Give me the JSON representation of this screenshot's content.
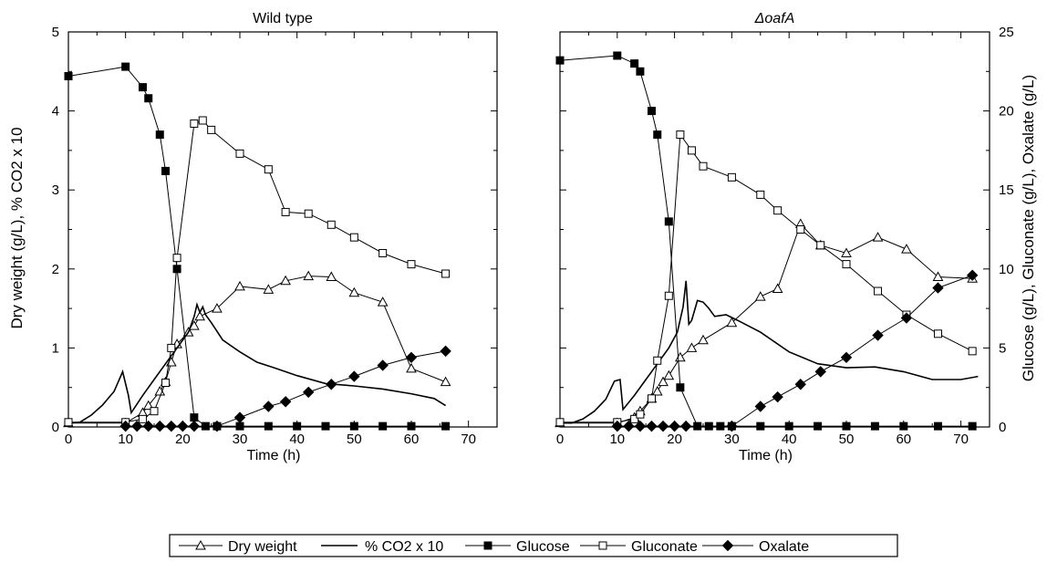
{
  "figure": {
    "left_axis_label": "Dry weight (g/L), % CO2 x 10",
    "right_axis_label": "Glucose  (g/L), Gluconate  (g/L), Oxalate  (g/L)"
  },
  "legend": {
    "items": [
      {
        "label": "Dry weight",
        "marker": "open-triangle",
        "line": true
      },
      {
        "label": "% CO2 x 10",
        "marker": "none",
        "line": true
      },
      {
        "label": "Glucose",
        "marker": "filled-square",
        "line": true
      },
      {
        "label": "Gluconate",
        "marker": "open-square",
        "line": true
      },
      {
        "label": "Oxalate",
        "marker": "filled-diamond",
        "line": true
      }
    ]
  },
  "chart_data": [
    {
      "type": "line",
      "title": "Wild type",
      "title_italic": false,
      "xlabel": "Time (h)",
      "xlim": [
        0,
        75
      ],
      "xticks": [
        0,
        10,
        20,
        30,
        40,
        50,
        60,
        70
      ],
      "ylim_left": [
        0,
        5
      ],
      "yticks_left": [
        0,
        1,
        2,
        3,
        4,
        5
      ],
      "ylim_right": [
        0,
        25
      ],
      "yticks_right": [
        0,
        5,
        10,
        15,
        20,
        25
      ],
      "show_left_ticklabels": true,
      "show_right_ticklabels": false,
      "grid": false,
      "series": [
        {
          "name": "Dry weight",
          "axis": "left",
          "marker": "open-triangle",
          "x": [
            0,
            10,
            13,
            14,
            16,
            17,
            18,
            19,
            21,
            22,
            23,
            26,
            30,
            35,
            38,
            42,
            46,
            50,
            55,
            60,
            66
          ],
          "y": [
            0.05,
            0.05,
            0.18,
            0.27,
            0.45,
            0.57,
            0.82,
            1.05,
            1.2,
            1.28,
            1.4,
            1.5,
            1.78,
            1.74,
            1.85,
            1.91,
            1.9,
            1.7,
            1.58,
            0.74,
            0.57
          ]
        },
        {
          "name": "% CO2 x 10",
          "axis": "left",
          "marker": "none",
          "x": [
            0,
            2,
            4,
            6,
            8,
            9.5,
            10.5,
            11,
            13,
            15,
            17,
            19,
            21,
            22,
            22.5,
            23,
            23.5,
            24,
            25,
            27,
            30,
            33,
            36,
            40,
            45,
            50,
            55,
            60,
            64,
            66
          ],
          "y": [
            0.05,
            0.06,
            0.15,
            0.28,
            0.45,
            0.7,
            0.4,
            0.18,
            0.4,
            0.6,
            0.8,
            1.0,
            1.2,
            1.4,
            1.55,
            1.45,
            1.52,
            1.42,
            1.32,
            1.1,
            0.95,
            0.82,
            0.75,
            0.65,
            0.55,
            0.52,
            0.48,
            0.42,
            0.36,
            0.27
          ]
        },
        {
          "name": "Glucose",
          "axis": "right",
          "marker": "filled-square",
          "x": [
            0,
            10,
            13,
            14,
            16,
            17,
            19,
            22,
            24,
            26,
            30,
            35,
            40,
            45,
            50,
            55,
            60,
            66
          ],
          "y": [
            22.2,
            22.8,
            21.5,
            20.8,
            18.5,
            16.2,
            10.0,
            0.6,
            0.05,
            0.05,
            0.05,
            0.05,
            0.05,
            0.05,
            0.05,
            0.05,
            0.05,
            0.05
          ]
        },
        {
          "name": "Gluconate",
          "axis": "right",
          "marker": "open-square",
          "x": [
            0,
            10,
            13,
            15,
            17,
            18,
            19,
            22,
            23.5,
            25,
            30,
            35,
            38,
            42,
            46,
            50,
            55,
            60,
            66
          ],
          "y": [
            0.3,
            0.3,
            0.5,
            1.0,
            2.8,
            5.0,
            10.7,
            19.2,
            19.4,
            18.8,
            17.3,
            16.3,
            13.6,
            13.5,
            12.8,
            12.0,
            11.0,
            10.3,
            9.7
          ]
        },
        {
          "name": "Oxalate",
          "axis": "right",
          "marker": "filled-diamond",
          "x": [
            10,
            12,
            14,
            16,
            18,
            20,
            22,
            26,
            30,
            35,
            38,
            42,
            46,
            50,
            55,
            60,
            66
          ],
          "y": [
            0.05,
            0.05,
            0.05,
            0.05,
            0.05,
            0.05,
            0.05,
            0.05,
            0.6,
            1.3,
            1.6,
            2.2,
            2.7,
            3.2,
            3.9,
            4.4,
            4.8
          ]
        }
      ]
    },
    {
      "type": "line",
      "title": "ΔoafA",
      "title_italic": true,
      "xlabel": "Time (h)",
      "xlim": [
        0,
        75
      ],
      "xticks": [
        0,
        10,
        20,
        30,
        40,
        50,
        60,
        70
      ],
      "ylim_left": [
        0,
        5
      ],
      "yticks_left": [
        0,
        1,
        2,
        3,
        4,
        5
      ],
      "ylim_right": [
        0,
        25
      ],
      "yticks_right": [
        0,
        5,
        10,
        15,
        20,
        25
      ],
      "show_left_ticklabels": false,
      "show_right_ticklabels": true,
      "grid": false,
      "series": [
        {
          "name": "Dry weight",
          "axis": "left",
          "marker": "open-triangle",
          "x": [
            0,
            10,
            13,
            14,
            16,
            17,
            18,
            19,
            21,
            23,
            25,
            30,
            35,
            38,
            42,
            45.5,
            50,
            55.5,
            60.5,
            66,
            72
          ],
          "y": [
            0.05,
            0.05,
            0.12,
            0.2,
            0.36,
            0.45,
            0.57,
            0.65,
            0.88,
            1.0,
            1.1,
            1.32,
            1.65,
            1.75,
            2.57,
            2.3,
            2.2,
            2.4,
            2.25,
            1.9,
            1.88
          ]
        },
        {
          "name": "% CO2 x 10",
          "axis": "left",
          "marker": "none",
          "x": [
            0,
            2,
            4,
            6,
            8,
            9.5,
            10.5,
            11,
            13,
            15,
            17,
            19,
            20.5,
            21.5,
            22,
            22.5,
            23,
            24,
            25,
            26,
            27,
            29,
            31,
            35,
            40,
            45,
            50,
            55,
            60,
            65,
            70,
            73
          ],
          "y": [
            0.05,
            0.05,
            0.1,
            0.2,
            0.35,
            0.58,
            0.6,
            0.22,
            0.4,
            0.6,
            0.8,
            1.0,
            1.2,
            1.52,
            1.85,
            1.3,
            1.35,
            1.6,
            1.58,
            1.5,
            1.4,
            1.42,
            1.35,
            1.2,
            0.95,
            0.8,
            0.75,
            0.76,
            0.7,
            0.6,
            0.6,
            0.64
          ]
        },
        {
          "name": "Glucose",
          "axis": "right",
          "marker": "filled-square",
          "x": [
            0,
            10,
            13,
            14,
            16,
            17,
            19,
            21,
            24,
            26,
            28,
            30,
            35,
            40,
            45,
            50,
            55,
            60,
            66,
            72
          ],
          "y": [
            23.2,
            23.5,
            23.0,
            22.5,
            20.0,
            18.5,
            13.0,
            2.5,
            0.05,
            0.05,
            0.05,
            0.05,
            0.05,
            0.05,
            0.05,
            0.05,
            0.05,
            0.05,
            0.05,
            0.05
          ]
        },
        {
          "name": "Gluconate",
          "axis": "right",
          "marker": "open-square",
          "x": [
            0,
            10,
            13,
            14,
            16,
            17,
            19,
            21,
            23,
            25,
            30,
            35,
            38,
            42,
            45.5,
            50,
            55.5,
            60.5,
            66,
            72
          ],
          "y": [
            0.3,
            0.3,
            0.5,
            0.8,
            1.8,
            4.2,
            8.3,
            18.5,
            17.5,
            16.5,
            15.8,
            14.7,
            13.7,
            12.5,
            11.5,
            10.3,
            8.6,
            7.1,
            5.9,
            4.8
          ]
        },
        {
          "name": "Oxalate",
          "axis": "right",
          "marker": "filled-diamond",
          "x": [
            10,
            12,
            14,
            16,
            18,
            20,
            22,
            30,
            35,
            38,
            42,
            45.5,
            50,
            55.5,
            60.5,
            66,
            72
          ],
          "y": [
            0.05,
            0.05,
            0.05,
            0.05,
            0.05,
            0.05,
            0.05,
            0.05,
            1.3,
            1.9,
            2.7,
            3.5,
            4.4,
            5.8,
            6.9,
            8.8,
            9.6
          ]
        }
      ]
    }
  ]
}
